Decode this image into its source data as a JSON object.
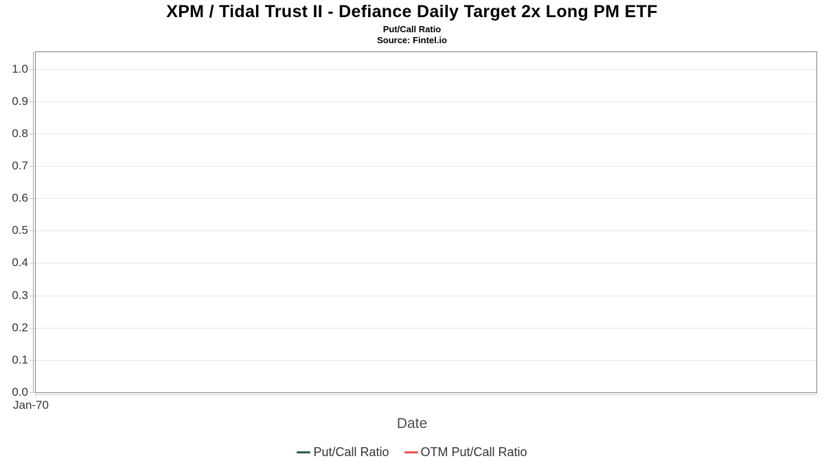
{
  "chart_data": {
    "type": "line",
    "title": "XPM / Tidal Trust II - Defiance Daily Target 2x Long PM ETF",
    "subtitle": "Put/Call Ratio",
    "source_note": "Source: Fintel.io",
    "xlabel": "Date",
    "ylabel": "",
    "ylim": [
      0.0,
      1.05
    ],
    "grid": "horizontal",
    "legend_position": "bottom-center",
    "plot_background": "#ffffff",
    "plot_border_color": "#7f7f7f",
    "gridline_color": "#e6e6e6",
    "x_ticks": [
      "Jan-70"
    ],
    "y_ticks": [
      {
        "label": "0.0",
        "value": 0.0
      },
      {
        "label": "0.1",
        "value": 0.1
      },
      {
        "label": "0.2",
        "value": 0.2
      },
      {
        "label": "0.3",
        "value": 0.3
      },
      {
        "label": "0.4",
        "value": 0.4
      },
      {
        "label": "0.5",
        "value": 0.5
      },
      {
        "label": "0.6",
        "value": 0.6
      },
      {
        "label": "0.7",
        "value": 0.7
      },
      {
        "label": "0.8",
        "value": 0.8
      },
      {
        "label": "0.9",
        "value": 0.9
      },
      {
        "label": "1.0",
        "value": 1.0
      }
    ],
    "series": [
      {
        "name": "Put/Call Ratio",
        "color": "#2e5f3e",
        "points": []
      },
      {
        "name": "OTM Put/Call Ratio",
        "color": "#f4514c",
        "points": []
      }
    ]
  }
}
